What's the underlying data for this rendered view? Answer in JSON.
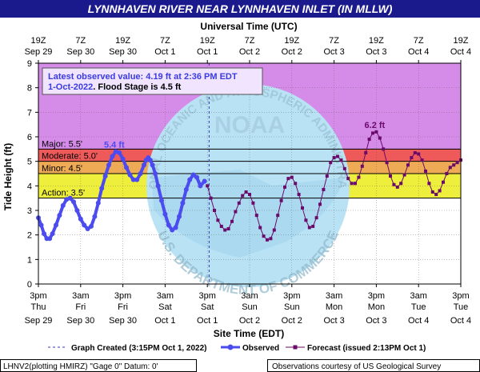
{
  "title": "LYNNHAVEN RIVER NEAR LYNNHAVEN INLET (IN MLLW)",
  "top_axis_title": "Universal Time (UTC)",
  "top_ticks": [
    {
      "t": 0,
      "l1": "19Z",
      "l2": "Sep 29"
    },
    {
      "t": 6,
      "l1": "7Z",
      "l2": "Sep 30"
    },
    {
      "t": 12,
      "l1": "19Z",
      "l2": "Sep 30"
    },
    {
      "t": 18,
      "l1": "7Z",
      "l2": "Oct 1"
    },
    {
      "t": 24,
      "l1": "19Z",
      "l2": "Oct 1"
    },
    {
      "t": 30,
      "l1": "7Z",
      "l2": "Oct 2"
    },
    {
      "t": 36,
      "l1": "19Z",
      "l2": "Oct 2"
    },
    {
      "t": 42,
      "l1": "7Z",
      "l2": "Oct 3"
    },
    {
      "t": 48,
      "l1": "19Z",
      "l2": "Oct 3"
    },
    {
      "t": 54,
      "l1": "7Z",
      "l2": "Oct 4"
    },
    {
      "t": 60,
      "l1": "19Z",
      "l2": "Oct 4"
    }
  ],
  "bottom_axis_title": "Site Time (EDT)",
  "bottom_ticks": [
    {
      "t": 0,
      "l1": "3pm",
      "l2": "Thu",
      "l3": "Sep 29"
    },
    {
      "t": 6,
      "l1": "3am",
      "l2": "Fri",
      "l3": "Sep 30"
    },
    {
      "t": 12,
      "l1": "3pm",
      "l2": "Fri",
      "l3": "Sep 30"
    },
    {
      "t": 18,
      "l1": "3am",
      "l2": "Sat",
      "l3": "Oct 1"
    },
    {
      "t": 24,
      "l1": "3pm",
      "l2": "Sat",
      "l3": "Oct 1"
    },
    {
      "t": 30,
      "l1": "3am",
      "l2": "Sun",
      "l3": "Oct 2"
    },
    {
      "t": 36,
      "l1": "3pm",
      "l2": "Sun",
      "l3": "Oct 2"
    },
    {
      "t": 42,
      "l1": "3am",
      "l2": "Mon",
      "l3": "Oct 3"
    },
    {
      "t": 48,
      "l1": "3pm",
      "l2": "Mon",
      "l3": "Oct 3"
    },
    {
      "t": 54,
      "l1": "3am",
      "l2": "Tue",
      "l3": "Oct 4"
    },
    {
      "t": 60,
      "l1": "3pm",
      "l2": "Tue",
      "l3": "Oct 4"
    }
  ],
  "footer": {
    "created": "Graph Created (3:15PM Oct 1, 2022)",
    "observed": "Observed",
    "forecast": "Forecast (issued 2:13PM Oct 1)",
    "station": "LHNV2(plotting HMIRZ) \"Gage 0\" Datum: 0'",
    "courtesy": "Observations courtesy of US Geological Survey"
  },
  "infobox": {
    "line1": "Latest observed value: 4.19 ft at 2:36 PM EDT",
    "line2a": "1-Oct-2022",
    "line2b": ". Flood Stage is 4.5 ft"
  },
  "watermark": {
    "top": "NATIONAL OCEANIC AND ATMOSPHERIC ADMINISTRATION",
    "center": "NOAA",
    "bottom": "U.S. DEPARTMENT OF COMMERCE"
  },
  "colors": {
    "title_bg": "#1a1a8c",
    "observed": "#4b4bf0",
    "forecast": "#6a0a6a",
    "major": "#d58be8",
    "moderate": "#ee5a5a",
    "minor": "#eeaa55",
    "action": "#eeee3c"
  },
  "chart_data": {
    "type": "line",
    "title": "LYNNHAVEN RIVER NEAR LYNNHAVEN INLET (IN MLLW)",
    "xlabel": "Site Time (EDT)",
    "ylabel": "Tide Height (ft)",
    "x_unit": "hours since 3pm Thu Sep 29 (EDT)",
    "xlim": [
      0,
      60
    ],
    "ylim": [
      0,
      9
    ],
    "yticks": [
      0,
      1,
      2,
      3,
      4,
      5,
      6,
      7,
      8,
      9
    ],
    "grid": true,
    "graph_created_t": 24.25,
    "stages": [
      {
        "name": "Major",
        "label": "Major: 5.5'",
        "value": 5.5
      },
      {
        "name": "Moderate",
        "label": "Moderate: 5.0'",
        "value": 5.0
      },
      {
        "name": "Minor",
        "label": "Minor: 4.5'",
        "value": 4.5
      },
      {
        "name": "Action",
        "label": "Action: 3.5'",
        "value": 3.5
      }
    ],
    "series": [
      {
        "name": "Observed",
        "points": [
          [
            0,
            2.7
          ],
          [
            0.4,
            2.4
          ],
          [
            0.8,
            2.05
          ],
          [
            1.2,
            1.85
          ],
          [
            1.6,
            1.85
          ],
          [
            2.0,
            2.05
          ],
          [
            2.5,
            2.4
          ],
          [
            3.0,
            2.8
          ],
          [
            3.5,
            3.2
          ],
          [
            4.0,
            3.45
          ],
          [
            4.5,
            3.5
          ],
          [
            5.0,
            3.35
          ],
          [
            5.5,
            3.0
          ],
          [
            6.0,
            2.65
          ],
          [
            6.5,
            2.4
          ],
          [
            7.0,
            2.25
          ],
          [
            7.5,
            2.35
          ],
          [
            8.0,
            2.75
          ],
          [
            8.5,
            3.3
          ],
          [
            9.0,
            3.9
          ],
          [
            9.5,
            4.4
          ],
          [
            10.0,
            4.85
          ],
          [
            10.5,
            5.2
          ],
          [
            11.0,
            5.4
          ],
          [
            11.5,
            5.35
          ],
          [
            12.0,
            5.1
          ],
          [
            12.5,
            4.75
          ],
          [
            13.0,
            4.45
          ],
          [
            13.5,
            4.25
          ],
          [
            14.0,
            4.25
          ],
          [
            14.5,
            4.5
          ],
          [
            15.0,
            4.85
          ],
          [
            15.3,
            5.05
          ],
          [
            15.6,
            5.15
          ],
          [
            15.9,
            5.05
          ],
          [
            16.2,
            4.85
          ],
          [
            16.6,
            4.5
          ],
          [
            17.0,
            4.0
          ],
          [
            17.5,
            3.4
          ],
          [
            18.0,
            2.85
          ],
          [
            18.5,
            2.4
          ],
          [
            19.0,
            2.2
          ],
          [
            19.5,
            2.3
          ],
          [
            20.0,
            2.75
          ],
          [
            20.5,
            3.3
          ],
          [
            21.0,
            3.85
          ],
          [
            21.5,
            4.25
          ],
          [
            22.0,
            4.45
          ],
          [
            22.5,
            4.35
          ],
          [
            23.0,
            4.0
          ],
          [
            23.6,
            4.19
          ]
        ]
      },
      {
        "name": "Forecast",
        "points": [
          [
            24,
            4.0
          ],
          [
            24.5,
            3.5
          ],
          [
            25,
            3.0
          ],
          [
            25.5,
            2.6
          ],
          [
            26,
            2.35
          ],
          [
            26.5,
            2.2
          ],
          [
            27,
            2.25
          ],
          [
            27.5,
            2.55
          ],
          [
            28,
            2.95
          ],
          [
            28.5,
            3.3
          ],
          [
            29,
            3.6
          ],
          [
            29.5,
            3.75
          ],
          [
            30,
            3.65
          ],
          [
            30.5,
            3.3
          ],
          [
            31,
            2.8
          ],
          [
            31.5,
            2.3
          ],
          [
            32,
            1.95
          ],
          [
            32.5,
            1.8
          ],
          [
            33,
            1.85
          ],
          [
            33.5,
            2.2
          ],
          [
            34,
            2.8
          ],
          [
            34.5,
            3.4
          ],
          [
            35,
            3.95
          ],
          [
            35.5,
            4.3
          ],
          [
            36,
            4.35
          ],
          [
            36.5,
            4.1
          ],
          [
            37,
            3.65
          ],
          [
            37.5,
            3.1
          ],
          [
            38,
            2.6
          ],
          [
            38.5,
            2.3
          ],
          [
            39,
            2.35
          ],
          [
            39.5,
            2.7
          ],
          [
            40,
            3.25
          ],
          [
            40.5,
            3.85
          ],
          [
            41,
            4.4
          ],
          [
            41.5,
            4.95
          ],
          [
            42,
            5.15
          ],
          [
            42.5,
            5.2
          ],
          [
            43,
            5.05
          ],
          [
            43.5,
            4.7
          ],
          [
            44,
            4.3
          ],
          [
            44.5,
            4.1
          ],
          [
            45,
            4.1
          ],
          [
            45.5,
            4.35
          ],
          [
            46,
            4.8
          ],
          [
            46.5,
            5.35
          ],
          [
            47,
            5.9
          ],
          [
            47.5,
            6.15
          ],
          [
            48,
            6.2
          ],
          [
            48.5,
            5.95
          ],
          [
            49,
            5.5
          ],
          [
            49.5,
            4.95
          ],
          [
            50,
            4.4
          ],
          [
            50.5,
            4.05
          ],
          [
            51,
            3.95
          ],
          [
            51.5,
            4.1
          ],
          [
            52,
            4.45
          ],
          [
            52.5,
            4.85
          ],
          [
            53,
            5.15
          ],
          [
            53.5,
            5.35
          ],
          [
            54,
            5.3
          ],
          [
            54.5,
            5.05
          ],
          [
            55,
            4.6
          ],
          [
            55.5,
            4.1
          ],
          [
            56,
            3.75
          ],
          [
            56.5,
            3.65
          ],
          [
            57,
            3.8
          ],
          [
            57.5,
            4.15
          ],
          [
            58,
            4.5
          ],
          [
            58.5,
            4.75
          ],
          [
            59,
            4.85
          ],
          [
            59.5,
            4.95
          ],
          [
            60,
            5.05
          ]
        ]
      }
    ],
    "annotations": [
      {
        "text": "5.4 ft",
        "t": 11.0,
        "value": 5.4,
        "series": "Observed"
      },
      {
        "text": "6.2 ft",
        "t": 48.0,
        "value": 6.2,
        "series": "Forecast"
      }
    ]
  }
}
